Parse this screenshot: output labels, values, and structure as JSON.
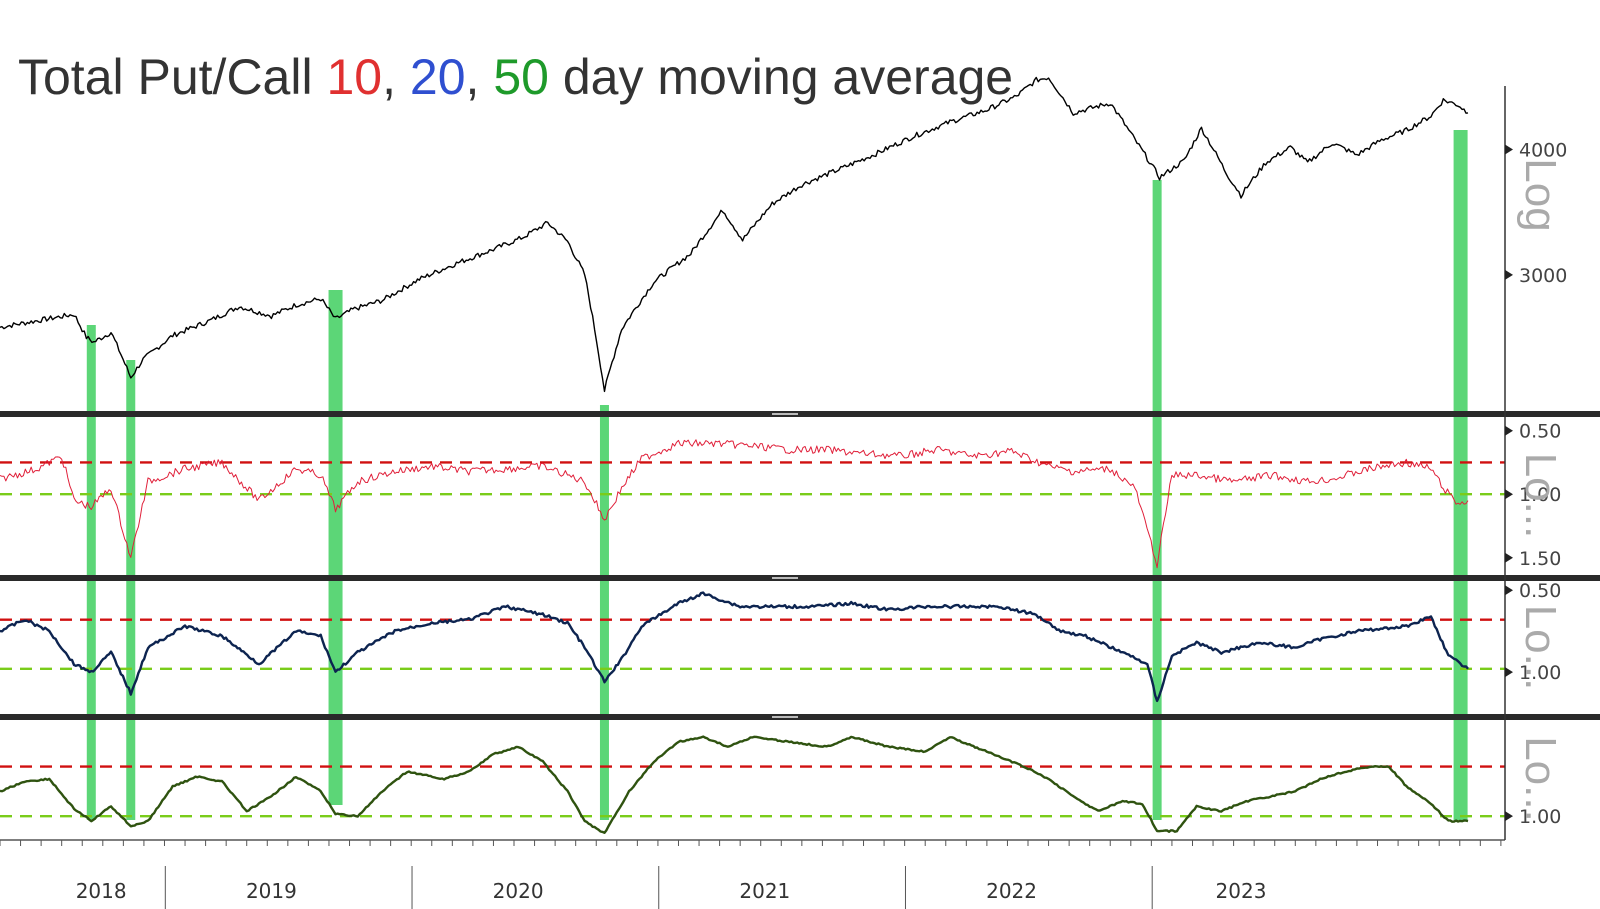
{
  "title": {
    "prefix": "Total Put/Call ",
    "n10": "10",
    "sep1": ", ",
    "n20": "20",
    "sep2": ", ",
    "n50": "50",
    "suffix": " day moving average"
  },
  "colors": {
    "title_text": "#333333",
    "n10": "#e03030",
    "n20": "#2f4fd0",
    "n50": "#1e9a2a",
    "price": "#000000",
    "ma10": "#e0203a",
    "ma20": "#0d2450",
    "ma50": "#2f5310",
    "highlight": "#3fcf5f",
    "red_ref": "#d01010",
    "green_ref": "#7acc1a"
  },
  "chart_data": {
    "type": "line",
    "x_axis": {
      "years": [
        "2018",
        "2019",
        "2020",
        "2021",
        "2022",
        "2023"
      ],
      "range": [
        2017.75,
        2023.85
      ]
    },
    "highlight_dates": [
      2018.12,
      2018.28,
      2019.11,
      2020.2,
      2022.44,
      2023.67
    ],
    "panels": [
      {
        "name": "price",
        "scale": "log",
        "scale_label": "Log",
        "ticks": [
          "3000",
          "4000"
        ],
        "tick_values": [
          3000,
          4000
        ],
        "series": [
          {
            "points": [
              [
                2017.75,
                2660
              ],
              [
                2017.9,
                2700
              ],
              [
                2018.05,
                2740
              ],
              [
                2018.1,
                2600
              ],
              [
                2018.13,
                2570
              ],
              [
                2018.2,
                2630
              ],
              [
                2018.28,
                2370
              ],
              [
                2018.33,
                2470
              ],
              [
                2018.45,
                2610
              ],
              [
                2018.6,
                2700
              ],
              [
                2018.72,
                2790
              ],
              [
                2018.85,
                2730
              ],
              [
                2018.95,
                2800
              ],
              [
                2019.05,
                2840
              ],
              [
                2019.11,
                2710
              ],
              [
                2019.18,
                2770
              ],
              [
                2019.3,
                2830
              ],
              [
                2019.45,
                2970
              ],
              [
                2019.6,
                3080
              ],
              [
                2019.75,
                3180
              ],
              [
                2019.87,
                3270
              ],
              [
                2019.97,
                3380
              ],
              [
                2020.05,
                3240
              ],
              [
                2020.12,
                3000
              ],
              [
                2020.2,
                2300
              ],
              [
                2020.27,
                2650
              ],
              [
                2020.4,
                2950
              ],
              [
                2020.55,
                3150
              ],
              [
                2020.68,
                3480
              ],
              [
                2020.76,
                3250
              ],
              [
                2020.88,
                3530
              ],
              [
                2021.0,
                3690
              ],
              [
                2021.15,
                3820
              ],
              [
                2021.3,
                3960
              ],
              [
                2021.45,
                4120
              ],
              [
                2021.6,
                4260
              ],
              [
                2021.75,
                4380
              ],
              [
                2021.87,
                4520
              ],
              [
                2021.95,
                4690
              ],
              [
                2022.0,
                4720
              ],
              [
                2022.1,
                4350
              ],
              [
                2022.25,
                4450
              ],
              [
                2022.35,
                4090
              ],
              [
                2022.45,
                3750
              ],
              [
                2022.55,
                3900
              ],
              [
                2022.62,
                4200
              ],
              [
                2022.72,
                3790
              ],
              [
                2022.78,
                3600
              ],
              [
                2022.88,
                3880
              ],
              [
                2022.98,
                4020
              ],
              [
                2023.05,
                3880
              ],
              [
                2023.15,
                4060
              ],
              [
                2023.25,
                3950
              ],
              [
                2023.35,
                4090
              ],
              [
                2023.45,
                4180
              ],
              [
                2023.55,
                4320
              ],
              [
                2023.6,
                4480
              ],
              [
                2023.66,
                4430
              ],
              [
                2023.7,
                4350
              ]
            ]
          }
        ]
      },
      {
        "name": "10-day",
        "scale_label": "Lo...",
        "ticks": [
          "0.50",
          "1.00",
          "1.50"
        ],
        "tick_values": [
          0.5,
          1.0,
          1.5
        ],
        "ref_lines": [
          0.75,
          1.0
        ],
        "series": [
          {
            "name": "10",
            "points": [
              [
                2017.75,
                0.88
              ],
              [
                2017.9,
                0.8
              ],
              [
                2018.0,
                0.7
              ],
              [
                2018.05,
                1.05
              ],
              [
                2018.12,
                1.1
              ],
              [
                2018.2,
                0.95
              ],
              [
                2018.28,
                1.5
              ],
              [
                2018.35,
                0.9
              ],
              [
                2018.5,
                0.8
              ],
              [
                2018.65,
                0.75
              ],
              [
                2018.8,
                1.05
              ],
              [
                2018.95,
                0.8
              ],
              [
                2019.05,
                0.85
              ],
              [
                2019.11,
                1.12
              ],
              [
                2019.2,
                0.9
              ],
              [
                2019.35,
                0.82
              ],
              [
                2019.5,
                0.78
              ],
              [
                2019.65,
                0.82
              ],
              [
                2019.8,
                0.8
              ],
              [
                2019.95,
                0.78
              ],
              [
                2020.05,
                0.85
              ],
              [
                2020.12,
                0.9
              ],
              [
                2020.2,
                1.2
              ],
              [
                2020.27,
                0.95
              ],
              [
                2020.35,
                0.72
              ],
              [
                2020.5,
                0.6
              ],
              [
                2020.65,
                0.6
              ],
              [
                2020.8,
                0.62
              ],
              [
                2020.95,
                0.65
              ],
              [
                2021.1,
                0.65
              ],
              [
                2021.25,
                0.68
              ],
              [
                2021.4,
                0.7
              ],
              [
                2021.55,
                0.65
              ],
              [
                2021.7,
                0.7
              ],
              [
                2021.85,
                0.66
              ],
              [
                2022.0,
                0.78
              ],
              [
                2022.1,
                0.82
              ],
              [
                2022.25,
                0.8
              ],
              [
                2022.35,
                0.95
              ],
              [
                2022.44,
                1.55
              ],
              [
                2022.5,
                0.85
              ],
              [
                2022.6,
                0.85
              ],
              [
                2022.75,
                0.9
              ],
              [
                2022.9,
                0.85
              ],
              [
                2023.05,
                0.9
              ],
              [
                2023.15,
                0.88
              ],
              [
                2023.3,
                0.8
              ],
              [
                2023.45,
                0.75
              ],
              [
                2023.55,
                0.8
              ],
              [
                2023.6,
                0.95
              ],
              [
                2023.66,
                1.08
              ],
              [
                2023.7,
                1.05
              ]
            ]
          }
        ]
      },
      {
        "name": "20-day",
        "scale_label": "Lo...",
        "ticks": [
          "0.50",
          "1.00"
        ],
        "tick_values": [
          0.5,
          1.0
        ],
        "ref_lines": [
          0.68,
          0.98
        ],
        "series": [
          {
            "name": "20",
            "points": [
              [
                2017.75,
                0.75
              ],
              [
                2017.85,
                0.68
              ],
              [
                2017.95,
                0.75
              ],
              [
                2018.05,
                0.95
              ],
              [
                2018.12,
                1.0
              ],
              [
                2018.2,
                0.88
              ],
              [
                2018.28,
                1.13
              ],
              [
                2018.35,
                0.85
              ],
              [
                2018.5,
                0.72
              ],
              [
                2018.65,
                0.78
              ],
              [
                2018.8,
                0.95
              ],
              [
                2018.95,
                0.75
              ],
              [
                2019.05,
                0.78
              ],
              [
                2019.11,
                1.0
              ],
              [
                2019.2,
                0.88
              ],
              [
                2019.35,
                0.75
              ],
              [
                2019.5,
                0.7
              ],
              [
                2019.65,
                0.68
              ],
              [
                2019.8,
                0.6
              ],
              [
                2019.95,
                0.65
              ],
              [
                2020.05,
                0.7
              ],
              [
                2020.12,
                0.85
              ],
              [
                2020.2,
                1.06
              ],
              [
                2020.27,
                0.92
              ],
              [
                2020.35,
                0.72
              ],
              [
                2020.5,
                0.58
              ],
              [
                2020.6,
                0.52
              ],
              [
                2020.75,
                0.6
              ],
              [
                2020.9,
                0.6
              ],
              [
                2021.05,
                0.6
              ],
              [
                2021.2,
                0.58
              ],
              [
                2021.35,
                0.62
              ],
              [
                2021.5,
                0.6
              ],
              [
                2021.65,
                0.6
              ],
              [
                2021.8,
                0.6
              ],
              [
                2021.95,
                0.65
              ],
              [
                2022.05,
                0.75
              ],
              [
                2022.15,
                0.78
              ],
              [
                2022.3,
                0.88
              ],
              [
                2022.4,
                0.95
              ],
              [
                2022.44,
                1.18
              ],
              [
                2022.5,
                0.9
              ],
              [
                2022.6,
                0.82
              ],
              [
                2022.7,
                0.88
              ],
              [
                2022.85,
                0.82
              ],
              [
                2023.0,
                0.85
              ],
              [
                2023.1,
                0.8
              ],
              [
                2023.25,
                0.75
              ],
              [
                2023.45,
                0.72
              ],
              [
                2023.55,
                0.66
              ],
              [
                2023.62,
                0.9
              ],
              [
                2023.7,
                0.98
              ]
            ]
          }
        ]
      },
      {
        "name": "50-day",
        "scale_label": "Lo...",
        "ticks": [
          "1.00"
        ],
        "tick_values": [
          1.0
        ],
        "ref_lines": [
          0.8,
          1.0
        ],
        "series": [
          {
            "name": "50",
            "points": [
              [
                2017.75,
                0.9
              ],
              [
                2017.85,
                0.86
              ],
              [
                2017.95,
                0.85
              ],
              [
                2018.05,
                0.97
              ],
              [
                2018.12,
                1.02
              ],
              [
                2018.2,
                0.96
              ],
              [
                2018.28,
                1.04
              ],
              [
                2018.35,
                1.02
              ],
              [
                2018.45,
                0.88
              ],
              [
                2018.55,
                0.84
              ],
              [
                2018.65,
                0.86
              ],
              [
                2018.75,
                0.98
              ],
              [
                2018.85,
                0.92
              ],
              [
                2018.95,
                0.84
              ],
              [
                2019.05,
                0.9
              ],
              [
                2019.11,
                0.99
              ],
              [
                2019.2,
                1.0
              ],
              [
                2019.3,
                0.9
              ],
              [
                2019.4,
                0.82
              ],
              [
                2019.55,
                0.85
              ],
              [
                2019.65,
                0.82
              ],
              [
                2019.75,
                0.75
              ],
              [
                2019.85,
                0.72
              ],
              [
                2019.95,
                0.78
              ],
              [
                2020.05,
                0.9
              ],
              [
                2020.12,
                1.02
              ],
              [
                2020.2,
                1.07
              ],
              [
                2020.3,
                0.9
              ],
              [
                2020.4,
                0.78
              ],
              [
                2020.5,
                0.7
              ],
              [
                2020.6,
                0.68
              ],
              [
                2020.7,
                0.72
              ],
              [
                2020.8,
                0.68
              ],
              [
                2020.95,
                0.7
              ],
              [
                2021.1,
                0.72
              ],
              [
                2021.2,
                0.68
              ],
              [
                2021.35,
                0.72
              ],
              [
                2021.5,
                0.74
              ],
              [
                2021.6,
                0.68
              ],
              [
                2021.75,
                0.74
              ],
              [
                2021.9,
                0.8
              ],
              [
                2022.0,
                0.85
              ],
              [
                2022.1,
                0.92
              ],
              [
                2022.2,
                0.98
              ],
              [
                2022.3,
                0.94
              ],
              [
                2022.38,
                0.95
              ],
              [
                2022.44,
                1.06
              ],
              [
                2022.52,
                1.06
              ],
              [
                2022.6,
                0.96
              ],
              [
                2022.7,
                0.98
              ],
              [
                2022.8,
                0.94
              ],
              [
                2022.9,
                0.92
              ],
              [
                2023.0,
                0.9
              ],
              [
                2023.1,
                0.85
              ],
              [
                2023.2,
                0.82
              ],
              [
                2023.3,
                0.8
              ],
              [
                2023.38,
                0.8
              ],
              [
                2023.45,
                0.88
              ],
              [
                2023.55,
                0.95
              ],
              [
                2023.62,
                1.02
              ],
              [
                2023.7,
                1.02
              ]
            ]
          }
        ]
      }
    ]
  }
}
